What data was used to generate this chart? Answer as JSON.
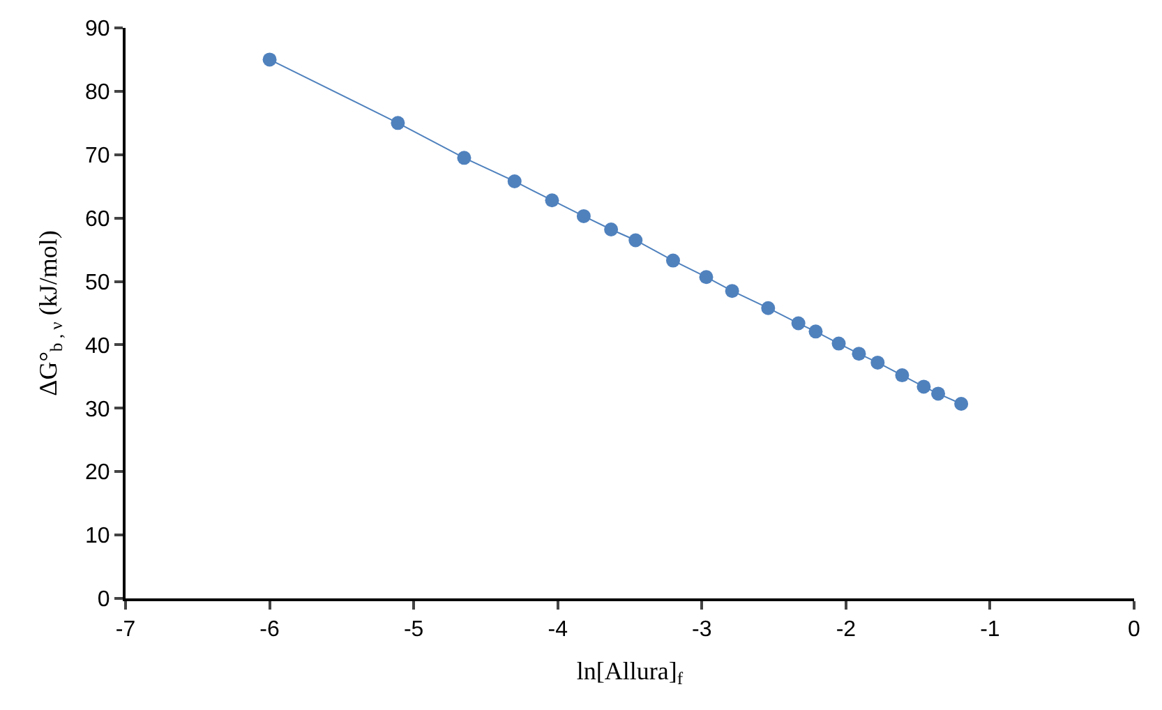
{
  "chart_data": {
    "type": "line",
    "xlabel": "ln[Allura]$_{f}$",
    "ylabel": "ΔG°$_{b , ν}$ (kJ/mol)",
    "x": [
      -6.0,
      -5.11,
      -4.65,
      -4.3,
      -4.04,
      -3.82,
      -3.63,
      -3.46,
      -3.2,
      -2.97,
      -2.79,
      -2.54,
      -2.33,
      -2.21,
      -2.05,
      -1.91,
      -1.78,
      -1.61,
      -1.46,
      -1.36,
      -1.2
    ],
    "series": [
      {
        "color": "#4f81bd",
        "values": [
          85.0,
          75.0,
          69.5,
          65.8,
          62.8,
          60.3,
          58.2,
          56.5,
          53.3,
          50.7,
          48.5,
          45.8,
          43.4,
          42.1,
          40.2,
          38.6,
          37.2,
          35.2,
          33.4,
          32.3,
          30.7
        ]
      }
    ],
    "xlim": [
      -7,
      0
    ],
    "xticks": [
      -7,
      -6,
      -5,
      -4,
      -3,
      -2,
      -1,
      0
    ],
    "ylim": [
      0,
      90
    ],
    "yticks": [
      0,
      10,
      20,
      30,
      40,
      50,
      60,
      70,
      80,
      90
    ],
    "marker": "circle",
    "line_style": "solid",
    "legend": false
  }
}
